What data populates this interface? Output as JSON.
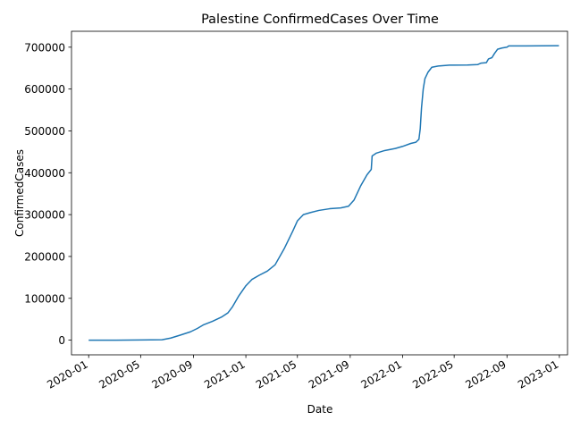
{
  "chart_data": {
    "type": "line",
    "title": "Palestine  ConfirmedCases Over Time",
    "xlabel": "Date",
    "ylabel": "ConfirmedCases",
    "x_ticks": [
      "2020-01",
      "2020-05",
      "2020-09",
      "2021-01",
      "2021-05",
      "2021-09",
      "2022-01",
      "2022-05",
      "2022-09",
      "2023-01"
    ],
    "y_ticks": [
      "0",
      "100000",
      "200000",
      "300000",
      "400000",
      "500000",
      "600000",
      "700000"
    ],
    "xlim": [
      "2019-11-22",
      "2023-01-20"
    ],
    "ylim": [
      -35000,
      738000
    ],
    "grid": false,
    "series": [
      {
        "color": "#1f77b4",
        "points": [
          [
            "2020-01-01",
            0
          ],
          [
            "2020-03-05",
            30
          ],
          [
            "2020-05-01",
            500
          ],
          [
            "2020-06-20",
            1000
          ],
          [
            "2020-07-10",
            5000
          ],
          [
            "2020-08-01",
            12000
          ],
          [
            "2020-08-25",
            20000
          ],
          [
            "2020-09-10",
            28000
          ],
          [
            "2020-09-25",
            37000
          ],
          [
            "2020-10-15",
            45000
          ],
          [
            "2020-11-05",
            55000
          ],
          [
            "2020-11-20",
            65000
          ],
          [
            "2020-12-01",
            80000
          ],
          [
            "2020-12-15",
            105000
          ],
          [
            "2021-01-01",
            130000
          ],
          [
            "2021-01-15",
            145000
          ],
          [
            "2021-02-01",
            155000
          ],
          [
            "2021-02-20",
            165000
          ],
          [
            "2021-03-10",
            180000
          ],
          [
            "2021-04-01",
            220000
          ],
          [
            "2021-04-20",
            260000
          ],
          [
            "2021-05-01",
            285000
          ],
          [
            "2021-05-15",
            300000
          ],
          [
            "2021-06-01",
            305000
          ],
          [
            "2021-06-20",
            310000
          ],
          [
            "2021-07-15",
            314000
          ],
          [
            "2021-08-10",
            316000
          ],
          [
            "2021-08-28",
            320000
          ],
          [
            "2021-09-10",
            335000
          ],
          [
            "2021-09-25",
            368000
          ],
          [
            "2021-10-10",
            395000
          ],
          [
            "2021-10-20",
            408000
          ],
          [
            "2021-10-22",
            440000
          ],
          [
            "2021-11-01",
            447000
          ],
          [
            "2021-11-20",
            453000
          ],
          [
            "2021-12-15",
            458000
          ],
          [
            "2022-01-01",
            463000
          ],
          [
            "2022-01-20",
            470000
          ],
          [
            "2022-02-01",
            473000
          ],
          [
            "2022-02-08",
            480000
          ],
          [
            "2022-02-11",
            505000
          ],
          [
            "2022-02-14",
            555000
          ],
          [
            "2022-02-18",
            600000
          ],
          [
            "2022-02-22",
            625000
          ],
          [
            "2022-03-01",
            640000
          ],
          [
            "2022-03-10",
            652000
          ],
          [
            "2022-03-25",
            655000
          ],
          [
            "2022-04-20",
            657000
          ],
          [
            "2022-06-01",
            657500
          ],
          [
            "2022-06-25",
            658500
          ],
          [
            "2022-07-03",
            662000
          ],
          [
            "2022-07-15",
            663000
          ],
          [
            "2022-07-20",
            672000
          ],
          [
            "2022-07-28",
            675000
          ],
          [
            "2022-08-03",
            685000
          ],
          [
            "2022-08-10",
            695000
          ],
          [
            "2022-08-20",
            698000
          ],
          [
            "2022-09-01",
            700000
          ],
          [
            "2022-09-05",
            703000
          ],
          [
            "2022-10-15",
            703000
          ],
          [
            "2022-12-31",
            703500
          ]
        ]
      }
    ]
  }
}
